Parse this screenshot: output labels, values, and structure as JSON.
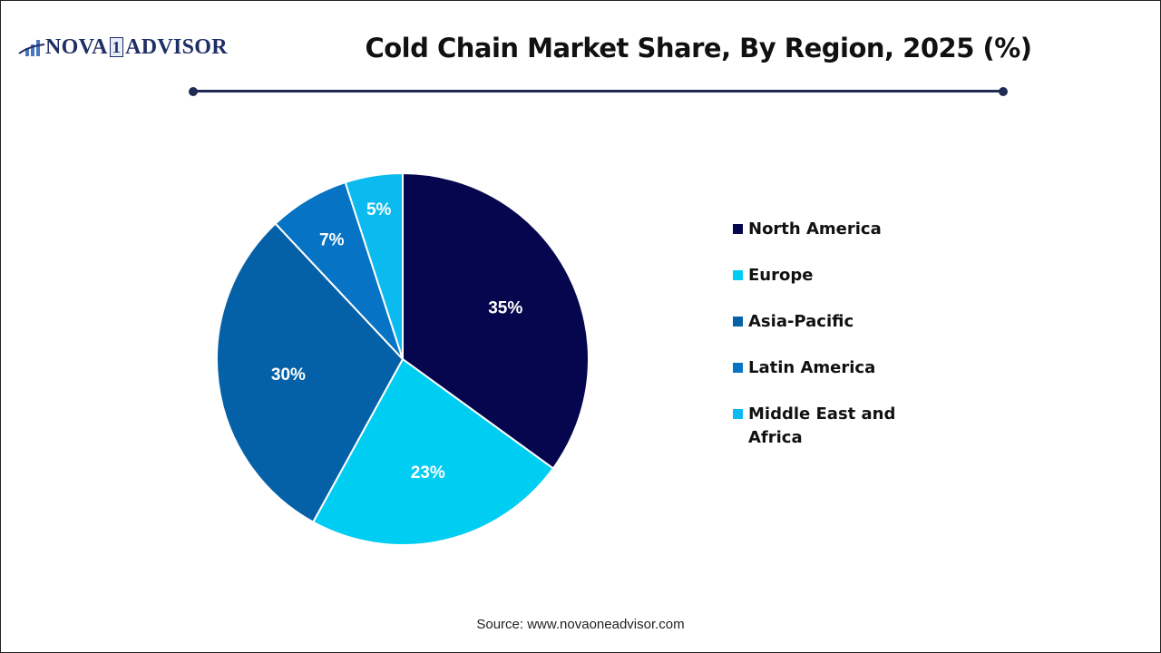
{
  "logo": {
    "text_left": "NOVA",
    "text_mid": "1",
    "text_right": "ADVISOR"
  },
  "title": "Cold Chain Market Share, By Region, 2025 (%)",
  "source": "Source: www.novaoneadvisor.com",
  "legend": [
    {
      "label": "North America",
      "color": "#06064f"
    },
    {
      "label": "Europe",
      "color": "#00cdf2"
    },
    {
      "label": "Asia-Pacific",
      "color": "#0461a8"
    },
    {
      "label": "Latin America",
      "color": "#0673c4"
    },
    {
      "label": "Middle East and Africa",
      "color": "#0bbbef"
    }
  ],
  "chart_data": {
    "type": "pie",
    "title": "Cold Chain Market Share, By Region, 2025 (%)",
    "categories": [
      "North America",
      "Europe",
      "Asia-Pacific",
      "Latin America",
      "Middle East and Africa"
    ],
    "values": [
      35,
      23,
      30,
      7,
      5
    ],
    "labels": [
      "35%",
      "23%",
      "30%",
      "7%",
      "5%"
    ],
    "colors": [
      "#06064f",
      "#00cdf2",
      "#0461a8",
      "#0673c4",
      "#0bbbef"
    ],
    "start_angle": "12 o'clock, clockwise",
    "legend_position": "right"
  }
}
